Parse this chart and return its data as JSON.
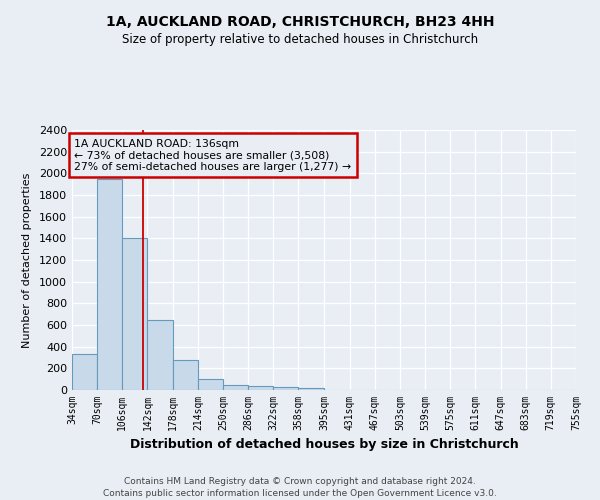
{
  "title1": "1A, AUCKLAND ROAD, CHRISTCHURCH, BH23 4HH",
  "title2": "Size of property relative to detached houses in Christchurch",
  "xlabel": "Distribution of detached houses by size in Christchurch",
  "ylabel": "Number of detached properties",
  "bins": [
    34,
    70,
    106,
    142,
    178,
    214,
    250,
    286,
    322,
    358,
    395,
    431,
    467,
    503,
    539,
    575,
    611,
    647,
    683,
    719,
    755
  ],
  "heights": [
    330,
    1950,
    1400,
    650,
    280,
    105,
    45,
    35,
    30,
    20,
    0,
    0,
    0,
    0,
    0,
    0,
    0,
    0,
    0,
    0
  ],
  "bar_color": "#c8daea",
  "bar_edge_color": "#6699bb",
  "red_line_x": 136,
  "ylim": [
    0,
    2400
  ],
  "yticks": [
    0,
    200,
    400,
    600,
    800,
    1000,
    1200,
    1400,
    1600,
    1800,
    2000,
    2200,
    2400
  ],
  "annotation_title": "1A AUCKLAND ROAD: 136sqm",
  "annotation_line1": "← 73% of detached houses are smaller (3,508)",
  "annotation_line2": "27% of semi-detached houses are larger (1,277) →",
  "annotation_box_color": "#cc0000",
  "footer1": "Contains HM Land Registry data © Crown copyright and database right 2024.",
  "footer2": "Contains public sector information licensed under the Open Government Licence v3.0.",
  "bg_color": "#e8eef4",
  "grid_color": "#ffffff",
  "text_color": "#000000"
}
